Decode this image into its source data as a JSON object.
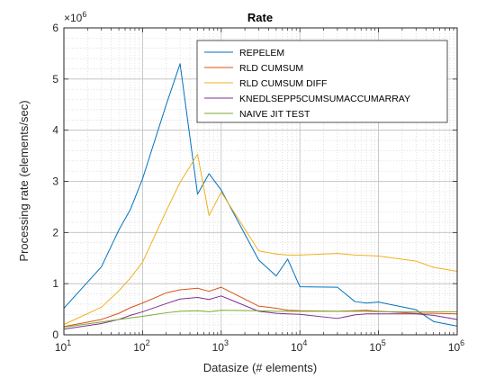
{
  "chart_data": {
    "type": "line",
    "title": "Rate",
    "xlabel": "Datasize (# elements)",
    "ylabel": "Processing rate (elements/sec)",
    "xscale": "log",
    "xlim": [
      10,
      1000000
    ],
    "ylim": [
      0,
      6000000
    ],
    "y_multiplier_label": "×10",
    "y_multiplier_exponent": "6",
    "x_tick_base": "10",
    "x_ticks": [
      {
        "base": "10",
        "exp": "1"
      },
      {
        "base": "10",
        "exp": "2"
      },
      {
        "base": "10",
        "exp": "3"
      },
      {
        "base": "10",
        "exp": "4"
      },
      {
        "base": "10",
        "exp": "5"
      },
      {
        "base": "10",
        "exp": "6"
      }
    ],
    "y_ticks": [
      "0",
      "1",
      "2",
      "3",
      "4",
      "5",
      "6"
    ],
    "grid": true,
    "minor_grid": true,
    "legend_position": "top-right",
    "x": [
      10,
      30,
      50,
      70,
      100,
      200,
      300,
      500,
      700,
      1000,
      3000,
      5000,
      7000,
      10000,
      30000,
      50000,
      70000,
      100000,
      300000,
      500000,
      1000000
    ],
    "series": [
      {
        "name": "REPELEM",
        "color": "#0072BD",
        "values": [
          520000,
          1330000,
          2050000,
          2450000,
          3050000,
          4500000,
          5300000,
          2750000,
          3150000,
          2830000,
          1460000,
          1150000,
          1480000,
          940000,
          930000,
          650000,
          620000,
          640000,
          490000,
          260000,
          170000
        ]
      },
      {
        "name": "RLD CUMSUM",
        "color": "#D95319",
        "values": [
          160000,
          300000,
          420000,
          530000,
          620000,
          820000,
          880000,
          910000,
          850000,
          930000,
          560000,
          520000,
          480000,
          470000,
          460000,
          470000,
          480000,
          460000,
          420000,
          420000,
          410000
        ]
      },
      {
        "name": "RLD CUMSUM DIFF",
        "color": "#EDB120",
        "values": [
          200000,
          540000,
          860000,
          1110000,
          1420000,
          2420000,
          2980000,
          3530000,
          2330000,
          2790000,
          1640000,
          1580000,
          1560000,
          1560000,
          1590000,
          1560000,
          1550000,
          1540000,
          1440000,
          1320000,
          1240000
        ]
      },
      {
        "name": "KNEDLSEPP5CUMSUMACCUMARRAY",
        "color": "#7E2F8E",
        "values": [
          110000,
          220000,
          300000,
          380000,
          450000,
          610000,
          700000,
          730000,
          690000,
          760000,
          460000,
          420000,
          410000,
          400000,
          320000,
          390000,
          410000,
          410000,
          410000,
          380000,
          300000
        ]
      },
      {
        "name": "NAIVE JIT TEST",
        "color": "#77AC30",
        "values": [
          150000,
          250000,
          300000,
          330000,
          360000,
          430000,
          460000,
          470000,
          450000,
          480000,
          470000,
          460000,
          460000,
          460000,
          460000,
          460000,
          460000,
          450000,
          450000,
          450000,
          450000
        ]
      }
    ]
  }
}
